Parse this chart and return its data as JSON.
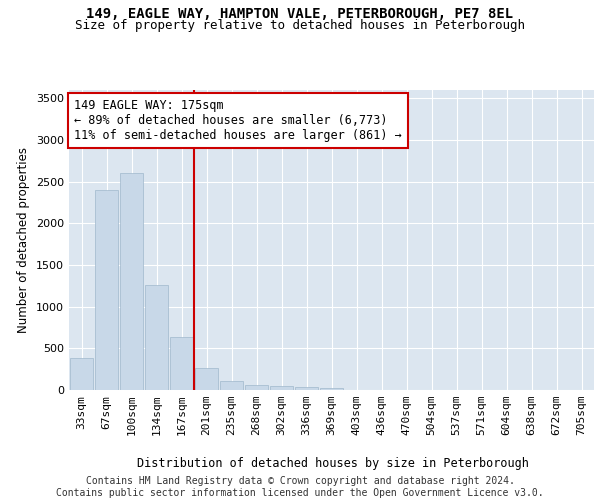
{
  "title1": "149, EAGLE WAY, HAMPTON VALE, PETERBOROUGH, PE7 8EL",
  "title2": "Size of property relative to detached houses in Peterborough",
  "xlabel": "Distribution of detached houses by size in Peterborough",
  "ylabel": "Number of detached properties",
  "bar_color": "#c8d8e8",
  "bar_edge_color": "#a0b8cc",
  "background_color": "#dce6f0",
  "categories": [
    "33sqm",
    "67sqm",
    "100sqm",
    "134sqm",
    "167sqm",
    "201sqm",
    "235sqm",
    "268sqm",
    "302sqm",
    "336sqm",
    "369sqm",
    "403sqm",
    "436sqm",
    "470sqm",
    "504sqm",
    "537sqm",
    "571sqm",
    "604sqm",
    "638sqm",
    "672sqm",
    "705sqm"
  ],
  "values": [
    390,
    2400,
    2600,
    1260,
    640,
    265,
    110,
    58,
    48,
    32,
    20,
    0,
    0,
    0,
    0,
    0,
    0,
    0,
    0,
    0,
    0
  ],
  "vline_x": 4.5,
  "vline_color": "#cc0000",
  "annotation_line1": "149 EAGLE WAY: 175sqm",
  "annotation_line2": "← 89% of detached houses are smaller (6,773)",
  "annotation_line3": "11% of semi-detached houses are larger (861) →",
  "ylim": [
    0,
    3600
  ],
  "yticks": [
    0,
    500,
    1000,
    1500,
    2000,
    2500,
    3000,
    3500
  ],
  "footer": "Contains HM Land Registry data © Crown copyright and database right 2024.\nContains public sector information licensed under the Open Government Licence v3.0.",
  "title1_fontsize": 10,
  "title2_fontsize": 9,
  "xlabel_fontsize": 8.5,
  "ylabel_fontsize": 8.5,
  "tick_fontsize": 8,
  "annotation_fontsize": 8.5,
  "footer_fontsize": 7
}
